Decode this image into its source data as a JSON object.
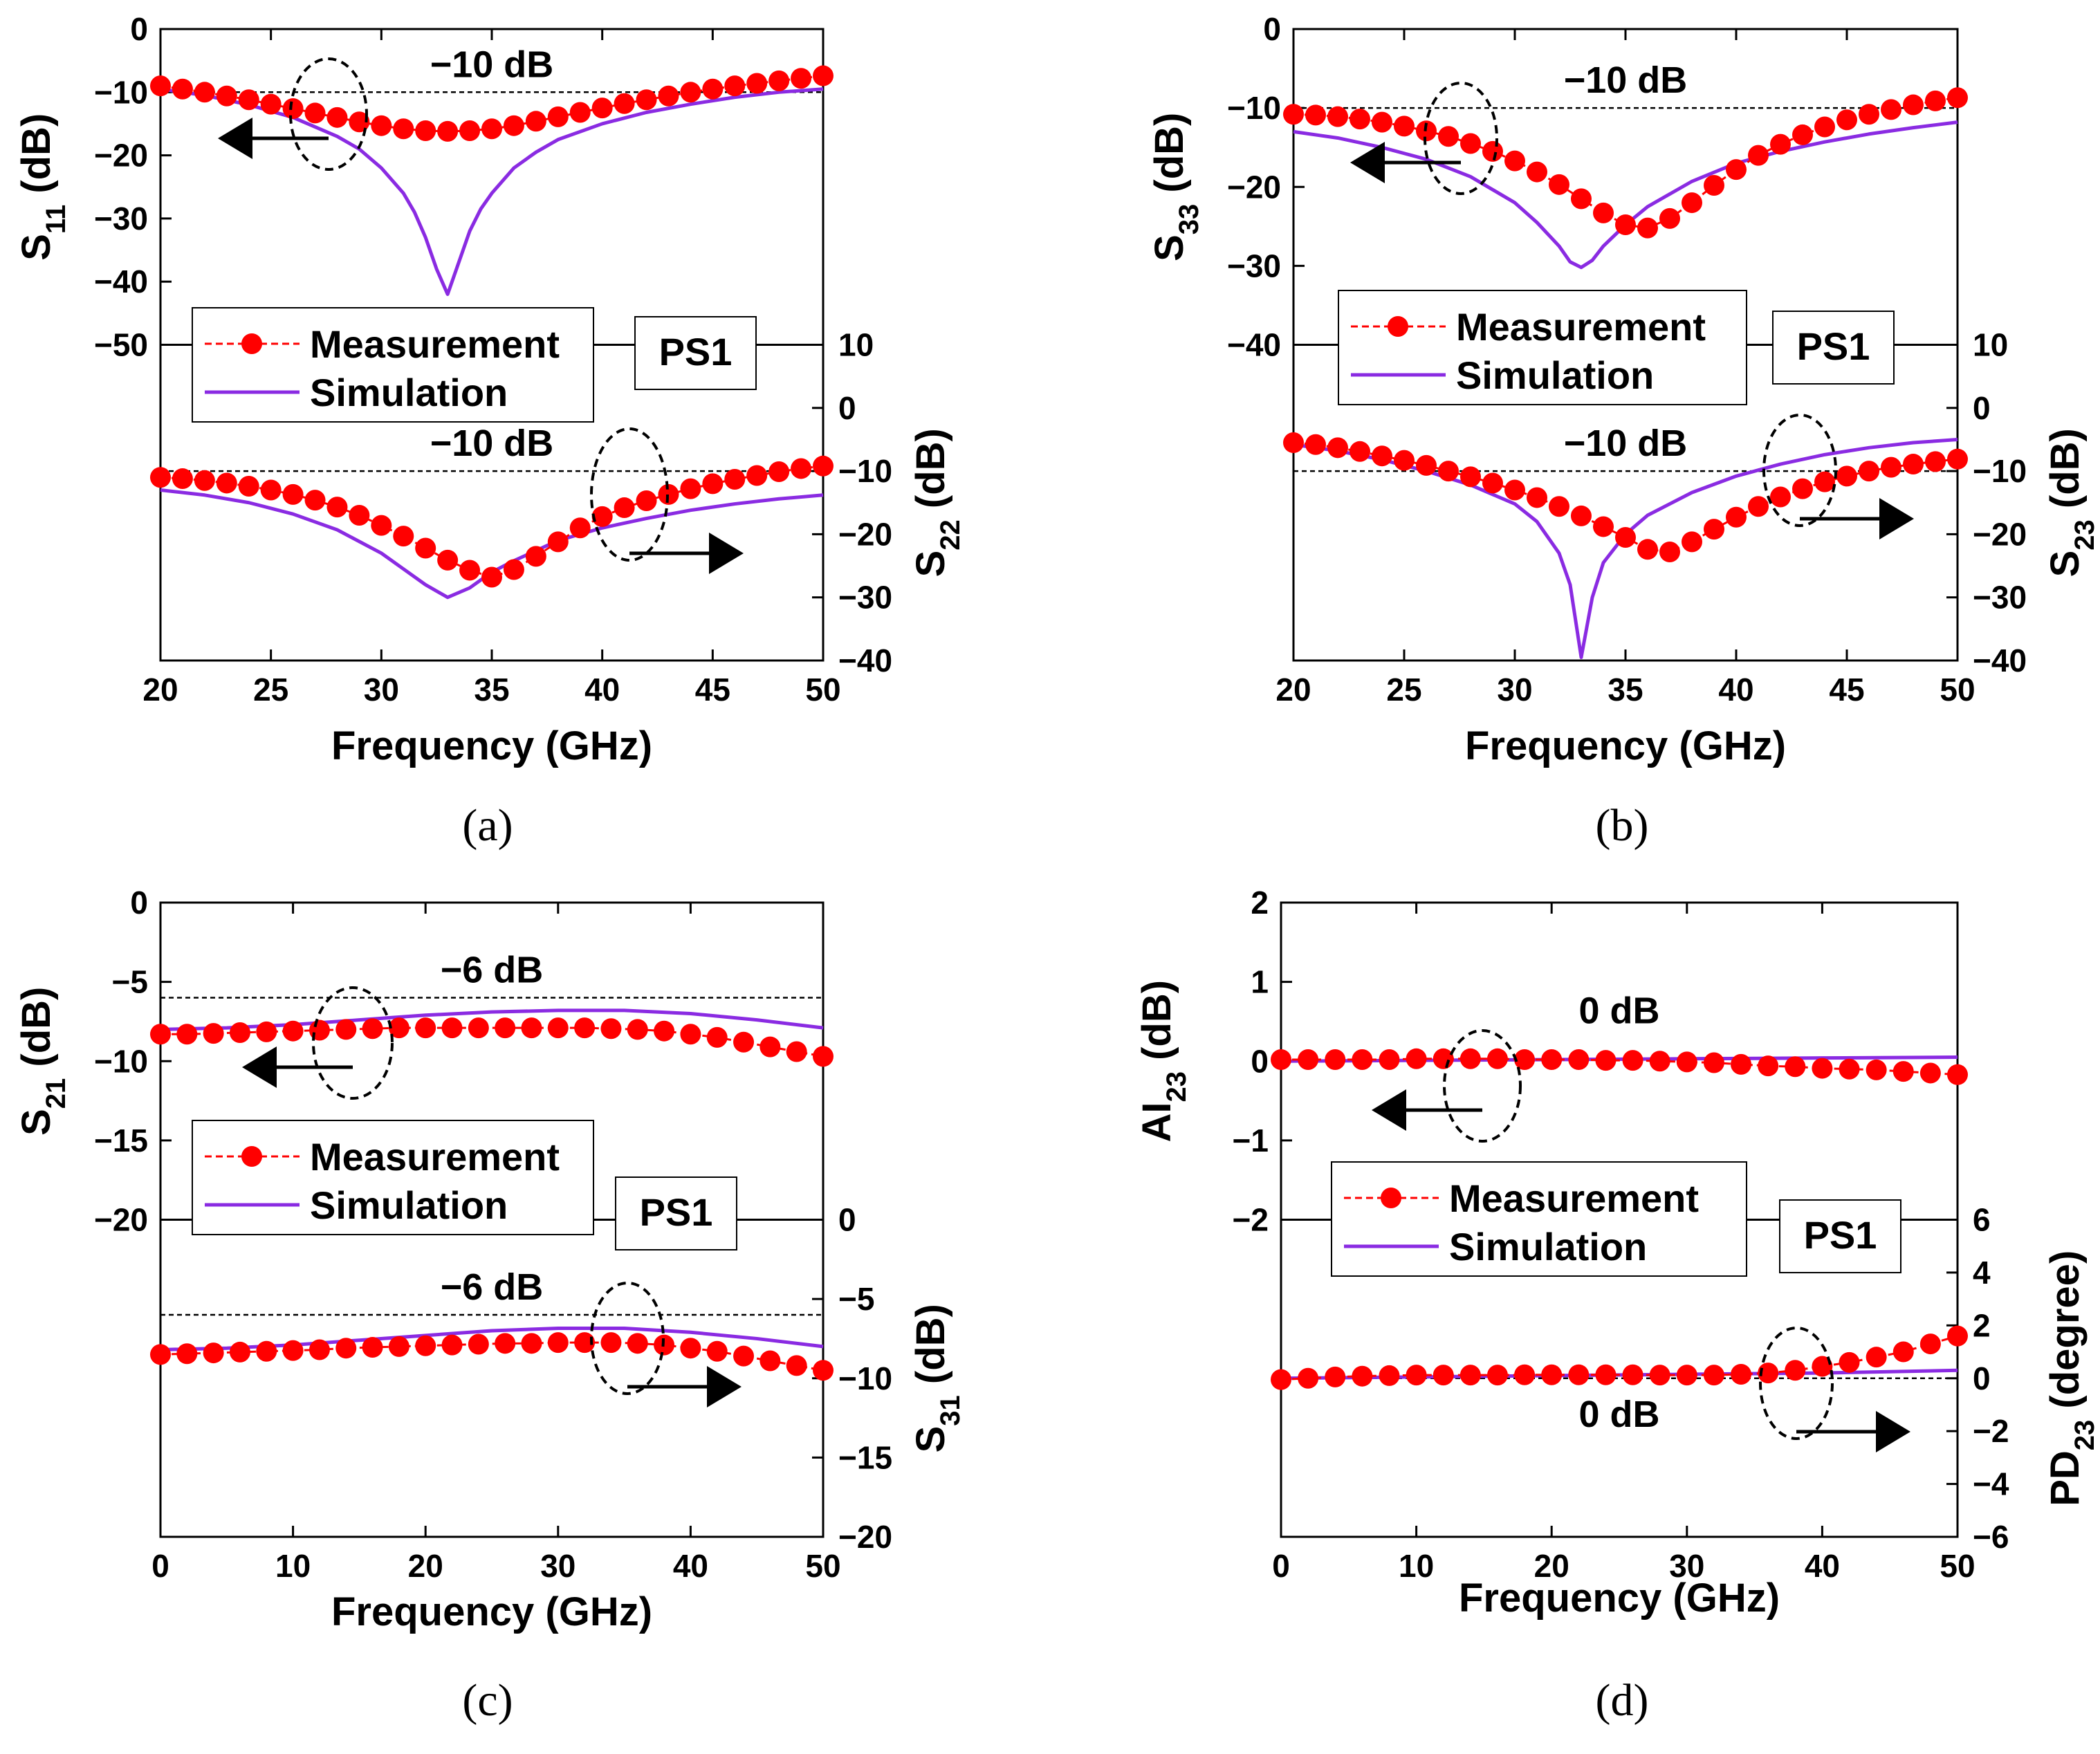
{
  "colors": {
    "measurement": "#ff0000",
    "simulation": "#8a2be2",
    "axis": "#000000"
  },
  "legend": {
    "measurement": "Measurement",
    "simulation": "Simulation",
    "tag": "PS1"
  },
  "chart_data": [
    {
      "id": "a",
      "panel_label": "(a)",
      "type": "line",
      "xlabel": "Frequency (GHz)",
      "xlim": [
        20,
        50
      ],
      "xticks": [
        "20",
        "25",
        "30",
        "35",
        "40",
        "45",
        "50"
      ],
      "top": {
        "ylabel_main": "S",
        "ylabel_sub": "11",
        "ylabel_unit": " (dB)",
        "ylim": [
          -50,
          0
        ],
        "yticks": [
          "0",
          "−10",
          "−20",
          "−30",
          "−40",
          "−50"
        ],
        "ref_value": -10,
        "ref_label": "−10 dB",
        "measurement": {
          "x": [
            20,
            21,
            22,
            23,
            24,
            25,
            26,
            27,
            28,
            29,
            30,
            31,
            32,
            33,
            34,
            35,
            36,
            37,
            38,
            39,
            40,
            41,
            42,
            43,
            44,
            45,
            46,
            47,
            48,
            49,
            50
          ],
          "y": [
            -9,
            -9.5,
            -10,
            -10.6,
            -11.2,
            -11.9,
            -12.6,
            -13.3,
            -14,
            -14.7,
            -15.3,
            -15.8,
            -16.1,
            -16.2,
            -16.1,
            -15.8,
            -15.3,
            -14.6,
            -13.9,
            -13.2,
            -12.5,
            -11.8,
            -11.2,
            -10.6,
            -10,
            -9.5,
            -9,
            -8.6,
            -8.2,
            -7.8,
            -7.4
          ]
        },
        "simulation": {
          "x": [
            20,
            22,
            24,
            26,
            28,
            29,
            30,
            31,
            31.5,
            32,
            32.5,
            33,
            33.5,
            34,
            34.5,
            35,
            36,
            37,
            38,
            40,
            42,
            44,
            46,
            48,
            50
          ],
          "y": [
            -9.5,
            -10.5,
            -12,
            -14,
            -17,
            -19,
            -22,
            -26,
            -29,
            -33,
            -38,
            -42,
            -37,
            -32,
            -28.5,
            -26,
            -22,
            -19.5,
            -17.5,
            -15,
            -13.2,
            -11.9,
            -10.8,
            -10,
            -9.5
          ]
        }
      },
      "bottom": {
        "ylabel_main": "S",
        "ylabel_sub": "22",
        "ylabel_unit": " (dB)",
        "ylim": [
          -40,
          10
        ],
        "yticks": [
          "10",
          "0",
          "−10",
          "−20",
          "−30",
          "−40"
        ],
        "ref_value": -10,
        "ref_label": "−10 dB",
        "measurement": {
          "x": [
            20,
            21,
            22,
            23,
            24,
            25,
            26,
            27,
            28,
            29,
            30,
            31,
            32,
            33,
            34,
            35,
            36,
            37,
            38,
            39,
            40,
            41,
            42,
            43,
            44,
            45,
            46,
            47,
            48,
            49,
            50
          ],
          "y": [
            -11,
            -11.2,
            -11.5,
            -11.9,
            -12.4,
            -13,
            -13.7,
            -14.6,
            -15.7,
            -17,
            -18.6,
            -20.3,
            -22.2,
            -24.1,
            -25.7,
            -26.8,
            -25.6,
            -23.5,
            -21.2,
            -19,
            -17.2,
            -15.8,
            -14.7,
            -13.7,
            -12.8,
            -12,
            -11.3,
            -10.7,
            -10.1,
            -9.6,
            -9.2
          ]
        },
        "simulation": {
          "x": [
            20,
            22,
            24,
            26,
            28,
            30,
            31,
            32,
            33,
            34,
            35,
            36,
            38,
            40,
            42,
            44,
            46,
            48,
            50
          ],
          "y": [
            -13,
            -13.8,
            -15,
            -16.8,
            -19.3,
            -23,
            -25.5,
            -28,
            -30,
            -28.5,
            -26,
            -24.2,
            -21,
            -19,
            -17.5,
            -16.2,
            -15.2,
            -14.4,
            -13.8
          ]
        }
      },
      "top_arrow": "left",
      "bottom_arrow": "right"
    },
    {
      "id": "b",
      "panel_label": "(b)",
      "type": "line",
      "xlabel": "Frequency (GHz)",
      "xlim": [
        20,
        50
      ],
      "xticks": [
        "20",
        "25",
        "30",
        "35",
        "40",
        "45",
        "50"
      ],
      "top": {
        "ylabel_main": "S",
        "ylabel_sub": "33",
        "ylabel_unit": " (dB)",
        "ylim": [
          -40,
          0
        ],
        "yticks": [
          "0",
          "−10",
          "−20",
          "−30",
          "−40"
        ],
        "ref_value": -10,
        "ref_label": "−10 dB",
        "measurement": {
          "x": [
            20,
            21,
            22,
            23,
            24,
            25,
            26,
            27,
            28,
            29,
            30,
            31,
            32,
            33,
            34,
            35,
            36,
            37,
            38,
            39,
            40,
            41,
            42,
            43,
            44,
            45,
            46,
            47,
            48,
            49,
            50
          ],
          "y": [
            -10.8,
            -10.9,
            -11.1,
            -11.4,
            -11.8,
            -12.3,
            -12.9,
            -13.6,
            -14.5,
            -15.5,
            -16.7,
            -18.1,
            -19.7,
            -21.5,
            -23.3,
            -24.8,
            -25.2,
            -24,
            -22,
            -19.8,
            -17.8,
            -16,
            -14.6,
            -13.4,
            -12.4,
            -11.5,
            -10.8,
            -10.2,
            -9.6,
            -9.1,
            -8.7
          ]
        },
        "simulation": {
          "x": [
            20,
            22,
            24,
            26,
            28,
            30,
            31,
            32,
            32.5,
            33,
            33.5,
            34,
            35,
            36,
            38,
            40,
            42,
            44,
            46,
            48,
            50
          ],
          "y": [
            -13,
            -13.8,
            -15,
            -16.5,
            -18.7,
            -22,
            -24.5,
            -27.5,
            -29.5,
            -30.2,
            -29.3,
            -27.5,
            -24.8,
            -22.5,
            -19.3,
            -17,
            -15.5,
            -14.3,
            -13.3,
            -12.5,
            -11.8
          ]
        }
      },
      "bottom": {
        "ylabel_main": "S",
        "ylabel_sub": "23",
        "ylabel_unit": " (dB)",
        "ylim": [
          -40,
          10
        ],
        "yticks": [
          "10",
          "0",
          "−10",
          "−20",
          "−30",
          "−40"
        ],
        "ref_value": -10,
        "ref_label": "−10 dB",
        "measurement": {
          "x": [
            20,
            21,
            22,
            23,
            24,
            25,
            26,
            27,
            28,
            29,
            30,
            31,
            32,
            33,
            34,
            35,
            36,
            37,
            38,
            39,
            40,
            41,
            42,
            43,
            44,
            45,
            46,
            47,
            48,
            49,
            50
          ],
          "y": [
            -5.5,
            -5.8,
            -6.3,
            -6.9,
            -7.6,
            -8.3,
            -9.1,
            -10,
            -10.9,
            -11.9,
            -13,
            -14.2,
            -15.6,
            -17.1,
            -18.8,
            -20.5,
            -22.4,
            -22.8,
            -21.2,
            -19.2,
            -17.3,
            -15.6,
            -14.1,
            -12.8,
            -11.7,
            -10.8,
            -10,
            -9.4,
            -8.9,
            -8.5,
            -8.1
          ]
        },
        "simulation": {
          "x": [
            20,
            22,
            24,
            26,
            28,
            30,
            31,
            32,
            32.5,
            33,
            33.5,
            34,
            35,
            36,
            38,
            40,
            42,
            44,
            46,
            48,
            50
          ],
          "y": [
            -5.8,
            -6.8,
            -8.2,
            -10,
            -12.2,
            -15.2,
            -18,
            -23,
            -28,
            -39.5,
            -30,
            -24.5,
            -20,
            -17,
            -13.4,
            -10.8,
            -8.9,
            -7.4,
            -6.3,
            -5.5,
            -5
          ]
        }
      },
      "top_arrow": "left",
      "bottom_arrow": "right"
    },
    {
      "id": "c",
      "panel_label": "(c)",
      "type": "line",
      "xlabel": "Frequency (GHz)",
      "xlim": [
        0,
        50
      ],
      "xticks": [
        "0",
        "10",
        "20",
        "30",
        "40",
        "50"
      ],
      "top": {
        "ylabel_main": "S",
        "ylabel_sub": "21",
        "ylabel_unit": " (dB)",
        "ylim": [
          -20,
          0
        ],
        "yticks": [
          "0",
          "−5",
          "−10",
          "−15",
          "−20"
        ],
        "ref_value": -6,
        "ref_label": "−6 dB",
        "measurement": {
          "x": [
            0,
            2,
            4,
            6,
            8,
            10,
            12,
            14,
            16,
            18,
            20,
            22,
            24,
            26,
            28,
            30,
            32,
            34,
            36,
            38,
            40,
            42,
            44,
            46,
            48,
            50
          ],
          "y": [
            -8.3,
            -8.3,
            -8.25,
            -8.2,
            -8.15,
            -8.1,
            -8.05,
            -8,
            -7.95,
            -7.9,
            -7.9,
            -7.9,
            -7.9,
            -7.9,
            -7.9,
            -7.9,
            -7.9,
            -7.95,
            -8,
            -8.1,
            -8.3,
            -8.5,
            -8.8,
            -9.1,
            -9.4,
            -9.7
          ]
        },
        "simulation": {
          "x": [
            0,
            5,
            10,
            15,
            20,
            25,
            30,
            35,
            40,
            45,
            50
          ],
          "y": [
            -8,
            -7.9,
            -7.7,
            -7.4,
            -7.1,
            -6.9,
            -6.8,
            -6.8,
            -7.0,
            -7.4,
            -7.9
          ]
        }
      },
      "bottom": {
        "ylabel_main": "S",
        "ylabel_sub": "31",
        "ylabel_unit": " (dB)",
        "ylim": [
          -20,
          0
        ],
        "yticks": [
          "0",
          "−5",
          "−10",
          "−15",
          "−20"
        ],
        "ref_value": -6,
        "ref_label": "−6 dB",
        "measurement": {
          "x": [
            0,
            2,
            4,
            6,
            8,
            10,
            12,
            14,
            16,
            18,
            20,
            22,
            24,
            26,
            28,
            30,
            32,
            34,
            36,
            38,
            40,
            42,
            44,
            46,
            48,
            50
          ],
          "y": [
            -8.5,
            -8.45,
            -8.4,
            -8.35,
            -8.3,
            -8.25,
            -8.2,
            -8.1,
            -8.05,
            -8,
            -7.95,
            -7.9,
            -7.85,
            -7.8,
            -7.8,
            -7.75,
            -7.75,
            -7.75,
            -7.8,
            -7.9,
            -8.1,
            -8.3,
            -8.6,
            -8.9,
            -9.2,
            -9.5
          ]
        },
        "simulation": {
          "x": [
            0,
            5,
            10,
            15,
            20,
            25,
            30,
            35,
            40,
            45,
            50
          ],
          "y": [
            -8.2,
            -8.1,
            -7.9,
            -7.6,
            -7.3,
            -7.0,
            -6.85,
            -6.85,
            -7.1,
            -7.5,
            -8.0
          ]
        }
      },
      "top_arrow": "left",
      "bottom_arrow": "right"
    },
    {
      "id": "d",
      "panel_label": "(d)",
      "type": "line",
      "xlabel": "Frequency (GHz)",
      "xlim": [
        0,
        50
      ],
      "xticks": [
        "0",
        "10",
        "20",
        "30",
        "40",
        "50"
      ],
      "top": {
        "ylabel_main": "AI",
        "ylabel_sub": "23",
        "ylabel_unit": " (dB)",
        "ylim": [
          -2,
          2
        ],
        "yticks": [
          "2",
          "1",
          "0",
          "−1",
          "−2"
        ],
        "ref_value": null,
        "ref_label": "0 dB",
        "measurement": {
          "x": [
            0,
            2,
            4,
            6,
            8,
            10,
            12,
            14,
            16,
            18,
            20,
            22,
            24,
            26,
            28,
            30,
            32,
            34,
            36,
            38,
            40,
            42,
            44,
            46,
            48,
            50
          ],
          "y": [
            0.02,
            0.02,
            0.02,
            0.02,
            0.02,
            0.03,
            0.03,
            0.03,
            0.03,
            0.02,
            0.02,
            0.02,
            0.01,
            0.01,
            0.0,
            -0.01,
            -0.02,
            -0.04,
            -0.06,
            -0.07,
            -0.09,
            -0.1,
            -0.11,
            -0.13,
            -0.15,
            -0.17
          ]
        },
        "simulation": {
          "x": [
            0,
            10,
            20,
            30,
            40,
            50
          ],
          "y": [
            0.0,
            0.01,
            0.02,
            0.03,
            0.04,
            0.05
          ]
        }
      },
      "bottom": {
        "ylabel_main": "PD",
        "ylabel_sub": "23",
        "ylabel_unit": " (degree)",
        "ylim": [
          -6,
          6
        ],
        "yticks": [
          "6",
          "4",
          "2",
          "0",
          "−2",
          "−4",
          "−6"
        ],
        "ref_value": 0,
        "ref_label": "0 dB",
        "measurement": {
          "x": [
            0,
            2,
            4,
            6,
            8,
            10,
            12,
            14,
            16,
            18,
            20,
            22,
            24,
            26,
            28,
            30,
            32,
            34,
            36,
            38,
            40,
            42,
            44,
            46,
            48,
            50
          ],
          "y": [
            -0.05,
            0,
            0.05,
            0.08,
            0.1,
            0.12,
            0.12,
            0.12,
            0.12,
            0.13,
            0.13,
            0.13,
            0.13,
            0.13,
            0.12,
            0.12,
            0.12,
            0.15,
            0.2,
            0.3,
            0.45,
            0.6,
            0.8,
            1.0,
            1.3,
            1.6
          ]
        },
        "simulation": {
          "x": [
            0,
            10,
            20,
            30,
            40,
            50
          ],
          "y": [
            0.0,
            0.05,
            0.1,
            0.15,
            0.2,
            0.3
          ]
        }
      },
      "top_arrow": "left",
      "bottom_arrow": "right"
    }
  ]
}
